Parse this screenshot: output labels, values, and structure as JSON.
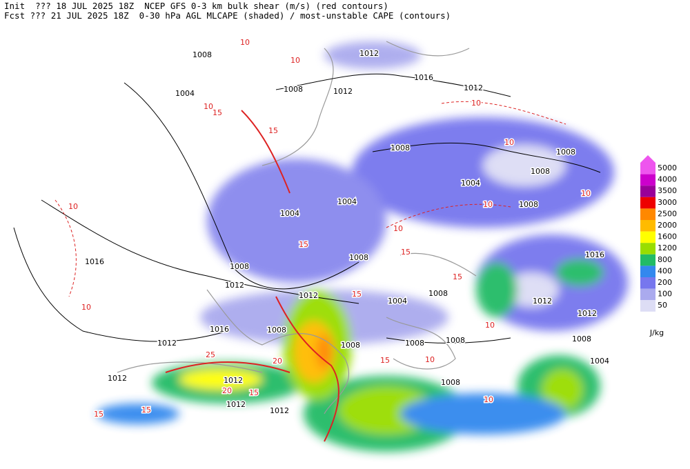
{
  "header": {
    "line1": "Init  ??? 18 JUL 2025 18Z  NCEP GFS 0-3 km bulk shear (m/s) (red contours)",
    "line2": "Fcst ??? 21 JUL 2025 18Z  0-30 hPa AGL MLCAPE (shaded) / most-unstable CAPE (contours)"
  },
  "legend": {
    "units": "J/kg",
    "levels": [
      {
        "label": "5000",
        "color": "#ee55ee"
      },
      {
        "label": "4000",
        "color": "#cc00cc"
      },
      {
        "label": "3500",
        "color": "#990099"
      },
      {
        "label": "3000",
        "color": "#ee0000"
      },
      {
        "label": "2500",
        "color": "#ff8800"
      },
      {
        "label": "2000",
        "color": "#ffbb00"
      },
      {
        "label": "1600",
        "color": "#ffff00"
      },
      {
        "label": "1200",
        "color": "#99dd00"
      },
      {
        "label": "800",
        "color": "#22bb66"
      },
      {
        "label": "400",
        "color": "#3388ee"
      },
      {
        "label": "200",
        "color": "#7777ee"
      },
      {
        "label": "100",
        "color": "#aaaaee"
      },
      {
        "label": "50",
        "color": "#ddddf5"
      }
    ]
  },
  "isobar_labels": [
    "1008",
    "1012",
    "1016",
    "1004",
    "1008",
    "1012",
    "1012",
    "1008",
    "1008",
    "1004",
    "1008",
    "1004",
    "1004",
    "1008",
    "1016",
    "1008",
    "1008",
    "1016",
    "1012",
    "1012",
    "1008",
    "1004",
    "1012",
    "1012",
    "1016",
    "1008",
    "1008",
    "1008",
    "1008",
    "1008",
    "1012",
    "1004",
    "1012",
    "1012",
    "1008",
    "1012",
    "1012"
  ],
  "shear_labels": [
    "10",
    "10",
    "10",
    "15",
    "15",
    "10",
    "10",
    "10",
    "10",
    "15",
    "15",
    "15",
    "15",
    "10",
    "10",
    "10",
    "10",
    "25",
    "20",
    "20",
    "15",
    "15",
    "15",
    "15",
    "10",
    "10"
  ]
}
